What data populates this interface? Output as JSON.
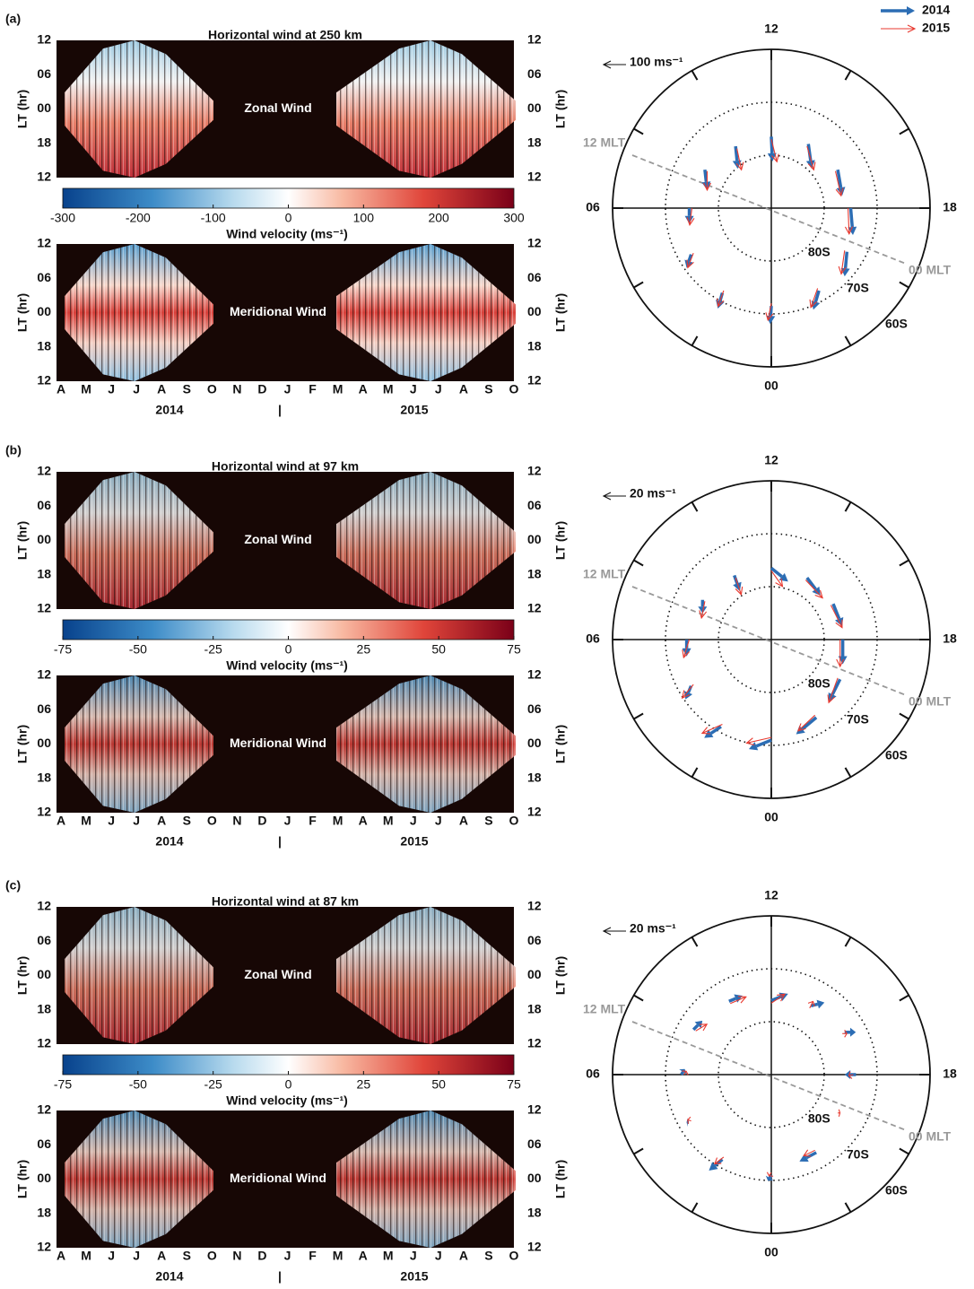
{
  "legend": {
    "entries": [
      {
        "name": "2014",
        "color": "#2c6db4"
      },
      {
        "name": "2015",
        "color": "#e8392f"
      }
    ]
  },
  "chart_data": [
    {
      "type": "wind-panel",
      "label": "(a)",
      "title": "Horizontal wind at 250 km",
      "heatmaps": [
        {
          "name": "Zonal Wind"
        },
        {
          "name": "Meridional Wind"
        }
      ],
      "y_label": "LT (hr)",
      "lt_ticks": [
        "12",
        "06",
        "00",
        "18",
        "12"
      ],
      "months": [
        "A",
        "M",
        "J",
        "J",
        "A",
        "S",
        "O",
        "N",
        "D",
        "J",
        "F",
        "M",
        "A",
        "M",
        "J",
        "J",
        "A",
        "S",
        "O"
      ],
      "years": [
        "2014",
        "|",
        "2015"
      ],
      "colorbar": {
        "label": "Wind velocity (ms⁻¹)",
        "lim": [
          -300,
          300
        ],
        "ticks": [
          -300,
          -200,
          -100,
          0,
          100,
          200,
          300
        ]
      },
      "polar": {
        "type": "polar-vector",
        "rlim": [
          -90,
          -60
        ],
        "rticks": [
          {
            "value": -80,
            "label": "80S"
          },
          {
            "value": -70,
            "label": "70S"
          },
          {
            "value": -60,
            "label": "60S"
          }
        ],
        "hour_labels": [
          {
            "value": 12,
            "label": "12"
          },
          {
            "value": 6,
            "label": "06"
          },
          {
            "value": 18,
            "label": "18"
          },
          {
            "value": 0,
            "label": "00"
          }
        ],
        "hour_ticks": [
          0,
          2,
          4,
          6,
          8,
          10,
          12,
          14,
          16,
          18,
          20,
          22
        ],
        "mlt_labels": [
          "12 MLT",
          "00 MLT"
        ],
        "scale_value": 100,
        "scale_label": "100 ms⁻¹",
        "mlt": [
          0,
          2,
          4,
          6,
          8,
          10,
          12,
          14,
          16,
          18,
          20,
          22
        ],
        "series": [
          {
            "lat": [
              -71.5,
              -71.5,
              -72.5,
              -74.5,
              -75.5,
              -76.5,
              -76.5,
              -76,
              -75.5,
              -75,
              -73.5,
              -72
            ],
            "vx": [
              -5,
              -20,
              -20,
              0,
              10,
              10,
              5,
              15,
              20,
              10,
              -10,
              -25
            ],
            "vy": [
              -80,
              -70,
              -60,
              -70,
              -90,
              -100,
              -110,
              -110,
              -115,
              -120,
              -110,
              -85
            ]
          },
          {
            "lat": [
              -72,
              -72,
              -73,
              -75,
              -76,
              -77,
              -77,
              -76.5,
              -76,
              -75.5,
              -74,
              -72.5
            ],
            "vx": [
              -15,
              -25,
              -25,
              -10,
              0,
              20,
              25,
              30,
              25,
              5,
              -15,
              -30
            ],
            "vy": [
              -75,
              -70,
              -65,
              -75,
              -85,
              -95,
              -100,
              -105,
              -110,
              -115,
              -105,
              -85
            ]
          }
        ]
      }
    },
    {
      "type": "wind-panel",
      "label": "(b)",
      "title": "Horizontal wind at 97 km",
      "heatmaps": [
        {
          "name": "Zonal Wind"
        },
        {
          "name": "Meridional Wind"
        }
      ],
      "y_label": "LT (hr)",
      "lt_ticks": [
        "12",
        "06",
        "00",
        "18",
        "12"
      ],
      "months": [
        "A",
        "M",
        "J",
        "J",
        "A",
        "S",
        "O",
        "N",
        "D",
        "J",
        "F",
        "M",
        "A",
        "M",
        "J",
        "J",
        "A",
        "S",
        "O"
      ],
      "years": [
        "2014",
        "|",
        "2015"
      ],
      "colorbar": {
        "label": "Wind velocity (ms⁻¹)",
        "lim": [
          -75,
          75
        ],
        "ticks": [
          -75,
          -50,
          -25,
          0,
          25,
          50,
          75
        ]
      },
      "polar": {
        "type": "polar-vector",
        "rlim": [
          -90,
          -60
        ],
        "rticks": [
          {
            "value": -80,
            "label": "80S"
          },
          {
            "value": -70,
            "label": "70S"
          },
          {
            "value": -60,
            "label": "60S"
          }
        ],
        "hour_labels": [
          {
            "value": 12,
            "label": "12"
          },
          {
            "value": 6,
            "label": "06"
          },
          {
            "value": 18,
            "label": "18"
          },
          {
            "value": 0,
            "label": "00"
          }
        ],
        "hour_ticks": [
          0,
          2,
          4,
          6,
          8,
          10,
          12,
          14,
          16,
          18,
          20,
          22
        ],
        "mlt_labels": [
          "12 MLT",
          "00 MLT"
        ],
        "scale_value": 20,
        "scale_label": "20 ms⁻¹",
        "mlt": [
          0,
          2,
          4,
          6,
          8,
          10,
          12,
          14,
          16,
          18,
          20,
          22
        ],
        "series": [
          {
            "lat": [
              -71,
              -71,
              -72.5,
              -74,
              -75,
              -76,
              -76.5,
              -76.5,
              -76.5,
              -76.5,
              -75,
              -73
            ],
            "vx": [
              -20,
              -15,
              -5,
              0,
              0,
              5,
              15,
              12,
              8,
              0,
              -10,
              -18
            ],
            "vy": [
              -8,
              -10,
              -12,
              -15,
              -12,
              -14,
              -12,
              -16,
              -20,
              -22,
              -20,
              -15
            ]
          },
          {
            "lat": [
              -71.5,
              -71.5,
              -73,
              -74.5,
              -75.5,
              -76.5,
              -77,
              -77,
              -77,
              -77,
              -75.5,
              -73.5
            ],
            "vx": [
              -22,
              -18,
              -10,
              -5,
              -3,
              5,
              10,
              15,
              10,
              0,
              -8,
              -15
            ],
            "vy": [
              -5,
              -8,
              -12,
              -16,
              -15,
              -15,
              -14,
              -16,
              -20,
              -24,
              -22,
              -14
            ]
          }
        ]
      }
    },
    {
      "type": "wind-panel",
      "label": "(c)",
      "title": "Horizontal wind at 87 km",
      "heatmaps": [
        {
          "name": "Zonal Wind"
        },
        {
          "name": "Meridional Wind"
        }
      ],
      "y_label": "LT (hr)",
      "lt_ticks": [
        "12",
        "06",
        "00",
        "18",
        "12"
      ],
      "months": [
        "A",
        "M",
        "J",
        "J",
        "A",
        "S",
        "O",
        "N",
        "D",
        "J",
        "F",
        "M",
        "A",
        "M",
        "J",
        "J",
        "A",
        "S",
        "O"
      ],
      "years": [
        "2014",
        "|",
        "2015"
      ],
      "colorbar": {
        "label": "Wind velocity (ms⁻¹)",
        "lim": [
          -75,
          75
        ],
        "ticks": [
          -75,
          -50,
          -25,
          0,
          25,
          50,
          75
        ]
      },
      "polar": {
        "type": "polar-vector",
        "rlim": [
          -90,
          -60
        ],
        "rticks": [
          {
            "value": -80,
            "label": "80S"
          },
          {
            "value": -70,
            "label": "70S"
          },
          {
            "value": -60,
            "label": "60S"
          }
        ],
        "hour_labels": [
          {
            "value": 12,
            "label": "12"
          },
          {
            "value": 6,
            "label": "06"
          },
          {
            "value": 18,
            "label": "18"
          },
          {
            "value": 0,
            "label": "00"
          }
        ],
        "hour_ticks": [
          0,
          2,
          4,
          6,
          8,
          10,
          12,
          14,
          16,
          18,
          20,
          22
        ],
        "mlt_labels": [
          "12 MLT",
          "00 MLT"
        ],
        "scale_value": 20,
        "scale_label": "20 ms⁻¹",
        "mlt": [
          0,
          2,
          4,
          6,
          8,
          10,
          12,
          14,
          16,
          18,
          20,
          22
        ],
        "series": [
          {
            "lat": [
              -71,
              -71.5,
              -72,
              -73,
              -73,
              -74,
              -76,
              -75,
              -74,
              -74,
              -75,
              -73
            ],
            "vx": [
              -3,
              -12,
              -2,
              3,
              8,
              12,
              15,
              12,
              10,
              -10,
              0,
              -15
            ],
            "vy": [
              -5,
              -10,
              0,
              5,
              8,
              5,
              6,
              3,
              0,
              0,
              0,
              -8
            ]
          },
          {
            "lat": [
              -71.5,
              -72,
              -72.5,
              -73.5,
              -73.5,
              -74.5,
              -76.5,
              -75.5,
              -74.5,
              -74.5,
              -75.5,
              -73.5
            ],
            "vx": [
              -2,
              -8,
              -3,
              2,
              10,
              14,
              12,
              3,
              4,
              -4,
              2,
              -10
            ],
            "vy": [
              -3,
              -6,
              1,
              3,
              6,
              6,
              8,
              6,
              0,
              -1,
              0,
              -5
            ]
          }
        ]
      }
    }
  ]
}
